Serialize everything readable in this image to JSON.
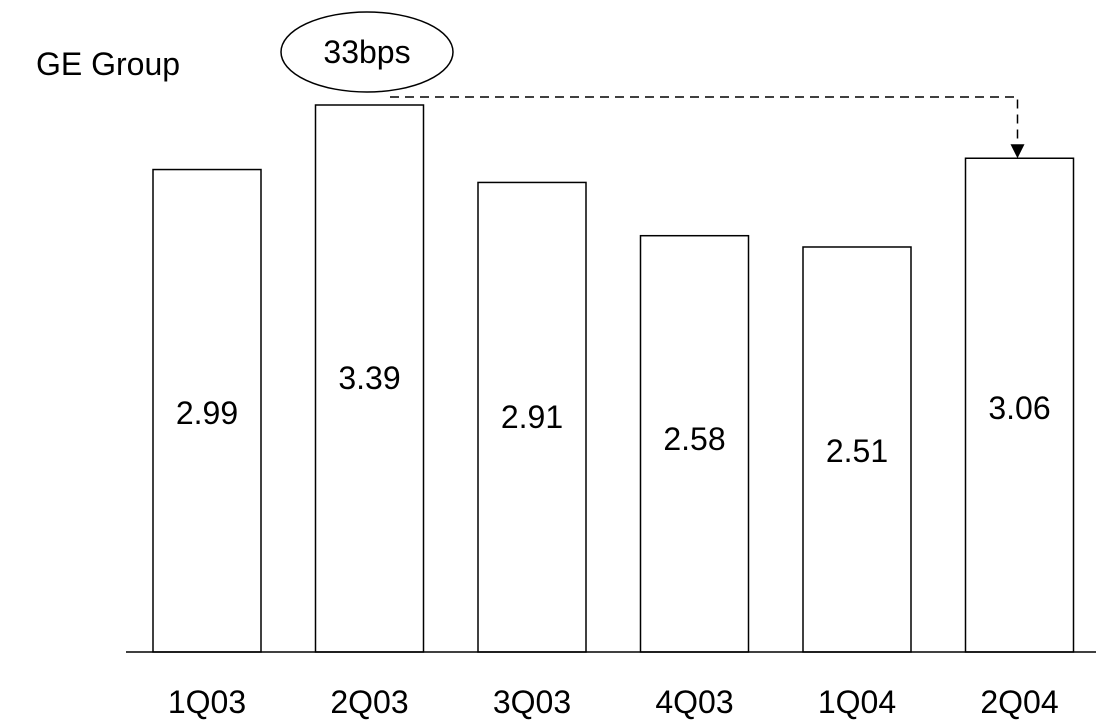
{
  "chart_data": {
    "type": "bar",
    "title": "GE Group",
    "categories": [
      "1Q03",
      "2Q03",
      "3Q03",
      "4Q03",
      "1Q04",
      "2Q04"
    ],
    "values": [
      2.99,
      3.39,
      2.91,
      2.58,
      2.51,
      3.06
    ],
    "data_labels": [
      "2.99",
      "3.39",
      "2.91",
      "2.58",
      "2.51",
      "3.06"
    ],
    "xlabel": "",
    "ylabel": "",
    "ylim": [
      0,
      3.39
    ],
    "grid": false,
    "annotation": {
      "text": "33bps",
      "from_category": "2Q03",
      "to_category": "2Q04",
      "style": "dashed-arrow"
    },
    "colors": {
      "bar_fill": "#ffffff",
      "bar_stroke": "#000000",
      "axis": "#000000"
    }
  }
}
